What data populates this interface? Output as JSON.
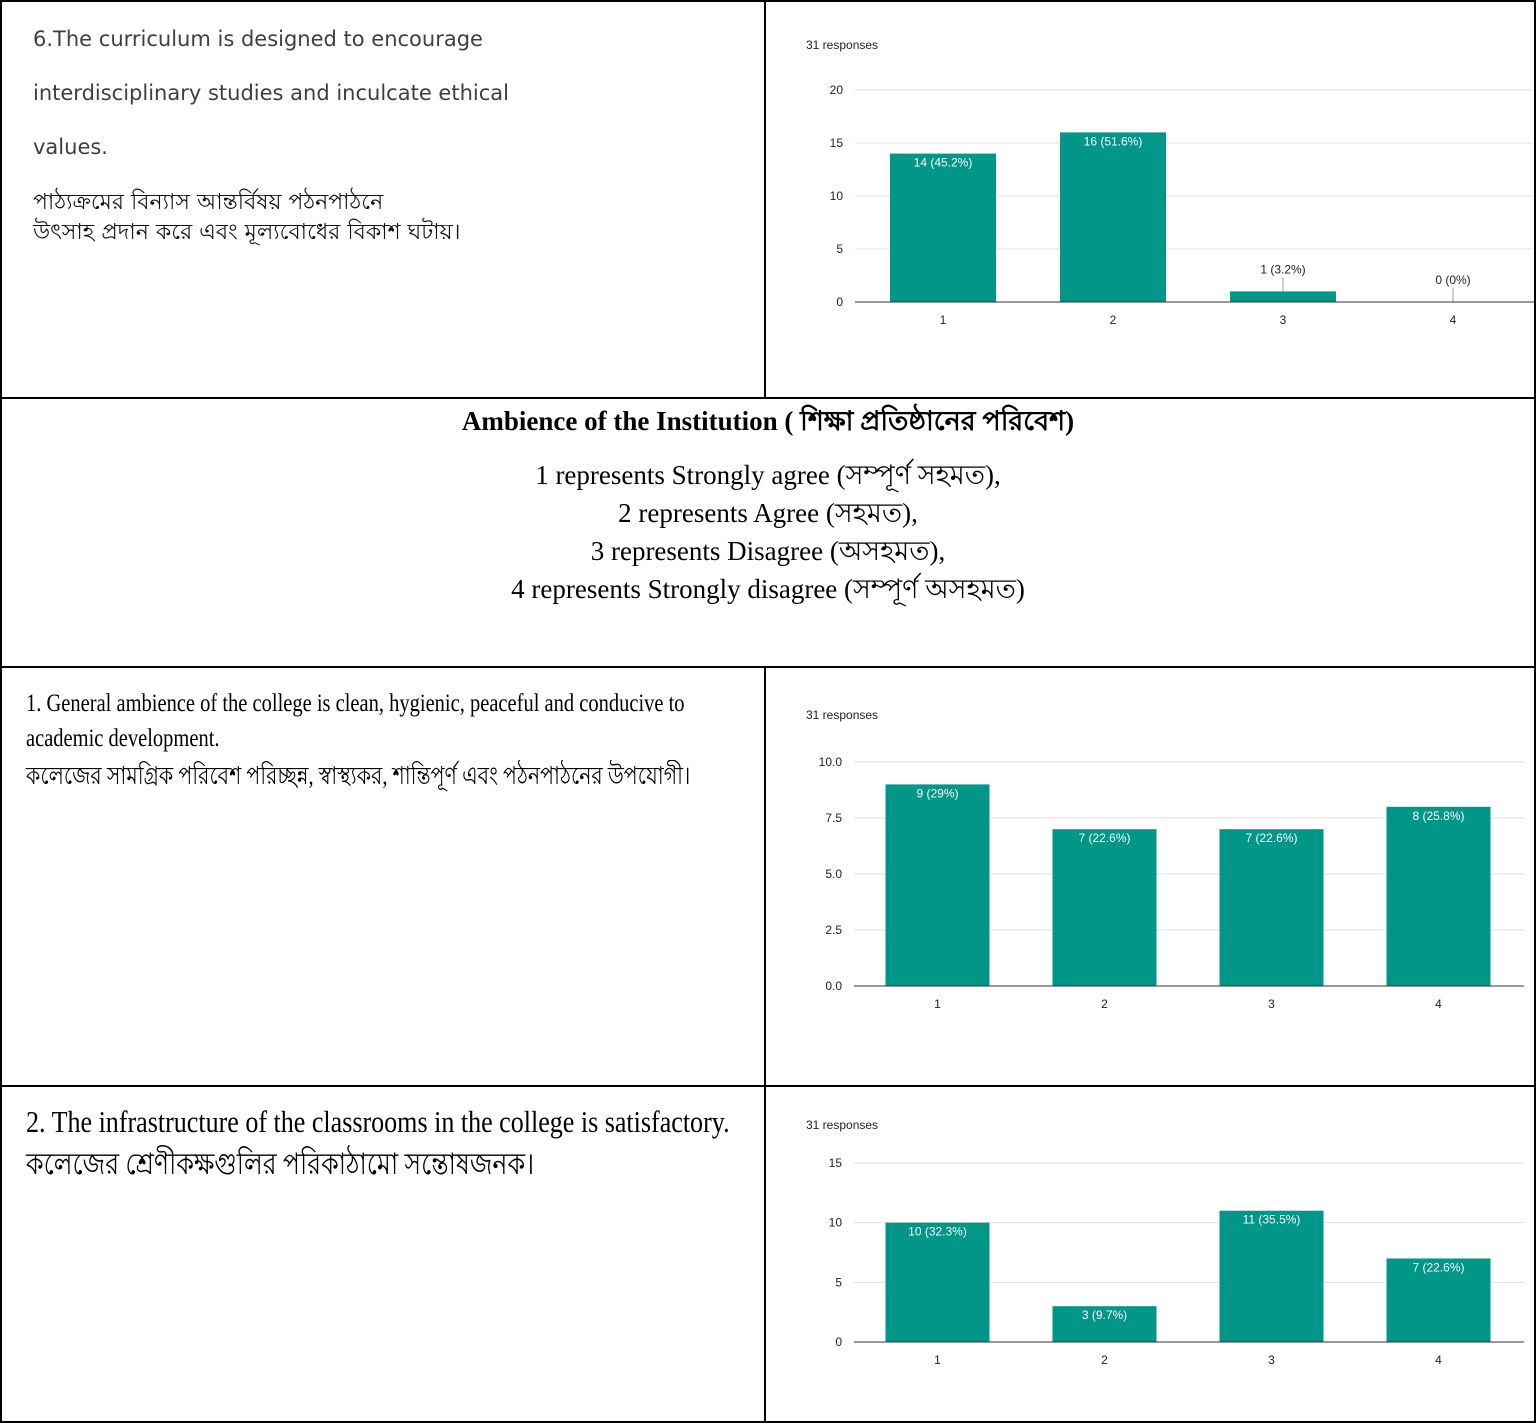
{
  "question6": {
    "text_en": "6.The curriculum is designed to encourage\ninterdisciplinary studies and inculcate ethical\nvalues.",
    "text_bn": "পাঠ্যক্রমের বিন্যাস আন্তর্বিষয় পঠনপাঠনে\nউৎসাহ প্রদান করে এবং মূল্যবোধের বিকাশ ঘটায়।"
  },
  "section": {
    "title": "Ambience of the Institution ( শিক্ষা প্রতিষ্ঠানের পরিবেশ)",
    "scale": [
      "1 represents Strongly agree (সম্পূর্ণ সহমত),",
      "2 represents Agree (সহমত),",
      "3 represents Disagree (অসহমত),",
      "4 represents Strongly disagree (সম্পূর্ণ অসহমত)"
    ]
  },
  "question1": {
    "text_en": "1. General ambience of the college is clean, hygienic, peaceful and conducive to academic development.",
    "text_bn": "কলেজের সামগ্রিক পরিবেশ পরিচ্ছন্ন, স্বাস্থ্যকর, শান্তিপূর্ণ এবং পঠনপাঠনের উপযোগী।"
  },
  "question2": {
    "text_en": "2. The infrastructure of the classrooms in the college is satisfactory.",
    "text_bn": "কলেজের শ্রেণীকক্ষগুলির পরিকাঠামো সন্তোষজনক।"
  },
  "colors": {
    "bar": "#009688",
    "grid": "#e0e0e0",
    "axis": "#5f6368"
  },
  "chart_data": [
    {
      "type": "bar",
      "responses": "31 responses",
      "categories": [
        "1",
        "2",
        "3",
        "4"
      ],
      "values": [
        14,
        16,
        1,
        0
      ],
      "labels": [
        "14 (45.2%)",
        "16 (51.6%)",
        "1 (3.2%)",
        "0 (0%)"
      ],
      "yticks": [
        "0",
        "5",
        "10",
        "15",
        "20"
      ],
      "ylim": [
        0,
        20
      ],
      "grid": true
    },
    {
      "type": "bar",
      "responses": "31 responses",
      "categories": [
        "1",
        "2",
        "3",
        "4"
      ],
      "values": [
        9,
        7,
        7,
        8
      ],
      "labels": [
        "9 (29%)",
        "7 (22.6%)",
        "7 (22.6%)",
        "8 (25.8%)"
      ],
      "yticks": [
        "0.0",
        "2.5",
        "5.0",
        "7.5",
        "10.0"
      ],
      "ylim": [
        0,
        10
      ],
      "grid": true
    },
    {
      "type": "bar",
      "responses": "31 responses",
      "categories": [
        "1",
        "2",
        "3",
        "4"
      ],
      "values": [
        10,
        3,
        11,
        7
      ],
      "labels": [
        "10 (32.3%)",
        "3 (9.7%)",
        "11 (35.5%)",
        "7 (22.6%)"
      ],
      "yticks": [
        "0",
        "5",
        "10",
        "15"
      ],
      "ylim": [
        0,
        15
      ],
      "grid": true
    }
  ]
}
